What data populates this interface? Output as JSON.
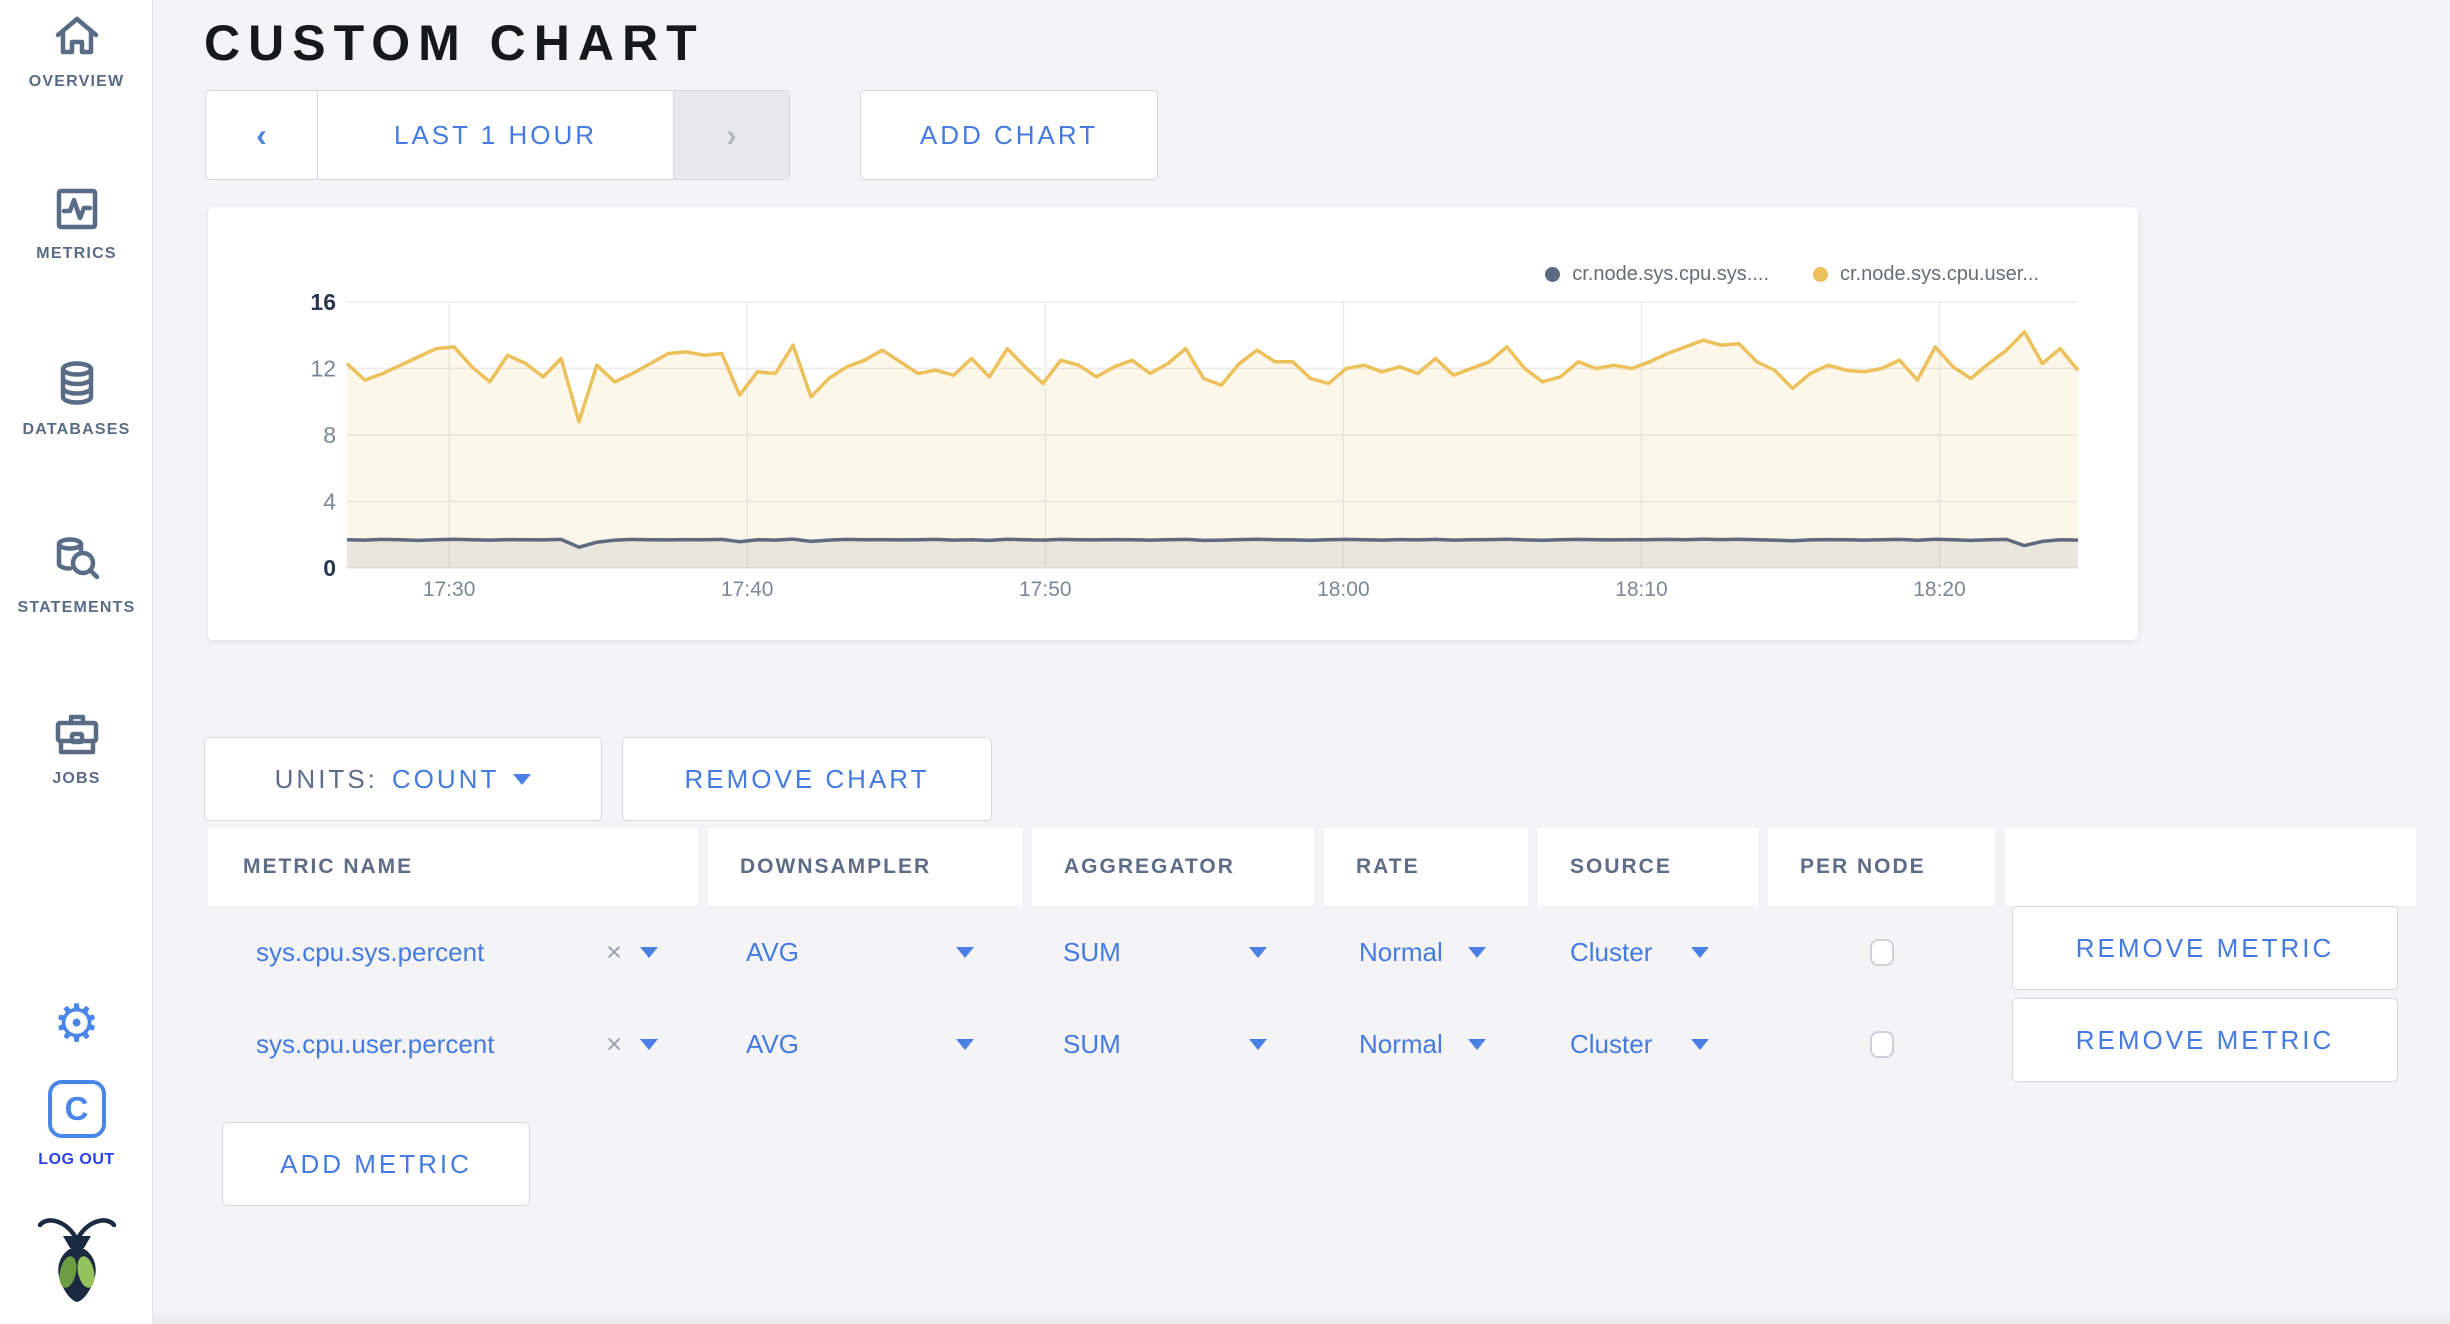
{
  "sidebar": {
    "items": [
      {
        "label": "OVERVIEW"
      },
      {
        "label": "METRICS"
      },
      {
        "label": "DATABASES"
      },
      {
        "label": "STATEMENTS"
      },
      {
        "label": "JOBS"
      }
    ],
    "logo_letter": "C",
    "logout_label": "LOG OUT"
  },
  "header": {
    "title": "CUSTOM CHART"
  },
  "time_selector": {
    "prev_icon": "‹",
    "range_label": "LAST 1 HOUR",
    "next_icon": "›"
  },
  "add_chart_label": "ADD CHART",
  "chart_data": {
    "type": "line",
    "title": "",
    "xlabel": "",
    "ylabel": "",
    "ylim": [
      0,
      16
    ],
    "y_ticks": [
      0,
      4,
      8,
      12,
      16
    ],
    "x_ticks": {
      "labels": [
        "17:30",
        "17:40",
        "17:50",
        "18:00",
        "18:10",
        "18:20"
      ],
      "fractions": [
        0.059,
        0.2312,
        0.4034,
        0.5756,
        0.7478,
        0.92
      ]
    },
    "grid": true,
    "area_fill": true,
    "legend_position": "top-right",
    "series": [
      {
        "name": "cr.node.sys.cpu.user...",
        "color": "#ecc05a",
        "values": [
          12.3,
          11.3,
          11.7,
          12.2,
          12.7,
          13.2,
          13.3,
          12.1,
          11.2,
          12.8,
          12.3,
          11.5,
          12.6,
          8.8,
          12.2,
          11.2,
          11.7,
          12.3,
          12.9,
          13.0,
          12.8,
          12.9,
          10.4,
          11.8,
          11.7,
          13.4,
          10.3,
          11.4,
          12.1,
          12.5,
          13.1,
          12.4,
          11.7,
          11.9,
          11.6,
          12.6,
          11.5,
          13.2,
          12.1,
          11.1,
          12.5,
          12.2,
          11.5,
          12.1,
          12.5,
          11.7,
          12.3,
          13.2,
          11.4,
          11.0,
          12.3,
          13.1,
          12.4,
          12.4,
          11.4,
          11.1,
          12.0,
          12.2,
          11.8,
          12.1,
          11.7,
          12.6,
          11.6,
          12.0,
          12.4,
          13.3,
          12.0,
          11.2,
          11.5,
          12.4,
          12.0,
          12.2,
          12.0,
          12.4,
          12.9,
          13.3,
          13.7,
          13.4,
          13.5,
          12.4,
          11.9,
          10.8,
          11.7,
          12.2,
          11.9,
          11.8,
          12.0,
          12.5,
          11.3,
          13.3,
          12.1,
          11.4,
          12.3,
          13.1,
          14.2,
          12.3,
          13.2,
          11.9
        ]
      },
      {
        "name": "cr.node.sys.cpu.sys....",
        "color": "#5e6a80",
        "values": [
          1.7,
          1.68,
          1.72,
          1.7,
          1.66,
          1.7,
          1.73,
          1.7,
          1.68,
          1.71,
          1.7,
          1.69,
          1.72,
          1.25,
          1.55,
          1.68,
          1.72,
          1.7,
          1.69,
          1.71,
          1.7,
          1.72,
          1.58,
          1.7,
          1.68,
          1.74,
          1.6,
          1.68,
          1.72,
          1.7,
          1.71,
          1.69,
          1.7,
          1.72,
          1.68,
          1.7,
          1.66,
          1.73,
          1.7,
          1.68,
          1.72,
          1.7,
          1.69,
          1.71,
          1.7,
          1.68,
          1.7,
          1.72,
          1.66,
          1.68,
          1.71,
          1.73,
          1.7,
          1.69,
          1.67,
          1.7,
          1.72,
          1.7,
          1.68,
          1.71,
          1.69,
          1.72,
          1.68,
          1.7,
          1.71,
          1.73,
          1.69,
          1.67,
          1.7,
          1.72,
          1.7,
          1.69,
          1.71,
          1.7,
          1.72,
          1.7,
          1.74,
          1.71,
          1.73,
          1.7,
          1.68,
          1.64,
          1.69,
          1.71,
          1.7,
          1.68,
          1.7,
          1.72,
          1.67,
          1.73,
          1.7,
          1.66,
          1.7,
          1.72,
          1.35,
          1.6,
          1.7,
          1.68
        ]
      }
    ],
    "legend": [
      {
        "label": "cr.node.sys.cpu.sys....",
        "color": "#5e6a80"
      },
      {
        "label": "cr.node.sys.cpu.user...",
        "color": "#ecc05a"
      }
    ]
  },
  "units": {
    "label": "UNITS:",
    "value": "COUNT"
  },
  "remove_chart_label": "REMOVE CHART",
  "metrics_table": {
    "columns": [
      "METRIC NAME",
      "DOWNSAMPLER",
      "AGGREGATOR",
      "RATE",
      "SOURCE",
      "PER NODE",
      ""
    ],
    "clear_icon": "×",
    "rows": [
      {
        "metric": "sys.cpu.sys.percent",
        "downsampler": "AVG",
        "aggregator": "SUM",
        "rate": "Normal",
        "source": "Cluster",
        "per_node_checked": false,
        "remove_label": "REMOVE METRIC"
      },
      {
        "metric": "sys.cpu.user.percent",
        "downsampler": "AVG",
        "aggregator": "SUM",
        "rate": "Normal",
        "source": "Cluster",
        "per_node_checked": false,
        "remove_label": "REMOVE METRIC"
      }
    ]
  },
  "add_metric_label": "ADD METRIC",
  "colors": {
    "accent_blue": "#457be0",
    "series_user": "#ecc05a",
    "series_sys": "#5e6a80",
    "logout_blue": "#2743ea",
    "sidebar_slate": "#5a6b85",
    "page_bg": "#f4f4f6"
  }
}
